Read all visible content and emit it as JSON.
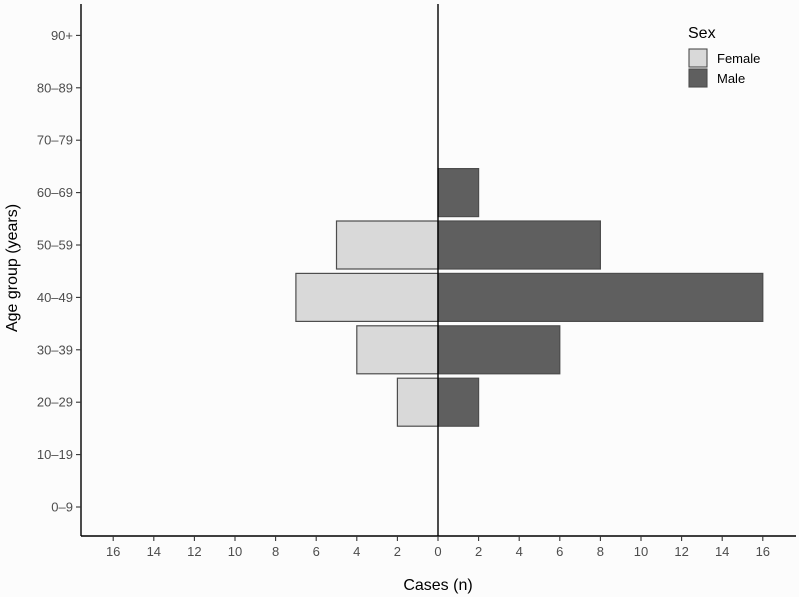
{
  "chart_data": {
    "type": "bar",
    "orientation": "horizontal",
    "categories": [
      "0–9",
      "10–19",
      "20–29",
      "30–39",
      "40–49",
      "50–59",
      "60–69",
      "70–79",
      "80–89",
      "90+"
    ],
    "series": [
      {
        "name": "Female",
        "values": [
          0,
          0,
          2,
          4,
          7,
          5,
          0,
          0,
          0,
          0
        ],
        "color": "#d9d9d9",
        "direction": "left"
      },
      {
        "name": "Male",
        "values": [
          0,
          0,
          2,
          6,
          16,
          8,
          2,
          0,
          0,
          0
        ],
        "color": "#5f5f5f",
        "direction": "right"
      }
    ],
    "xlabel": "Cases (n)",
    "ylabel": "Age group (years)",
    "xlim": [
      -17.5,
      17.5
    ],
    "xticks": [
      -16,
      -14,
      -12,
      -10,
      -8,
      -6,
      -4,
      -2,
      0,
      2,
      4,
      6,
      8,
      10,
      12,
      14,
      16
    ],
    "xtick_labels": [
      "16",
      "14",
      "12",
      "10",
      "8",
      "6",
      "4",
      "2",
      "0",
      "2",
      "4",
      "6",
      "8",
      "10",
      "12",
      "14",
      "16"
    ],
    "legend": {
      "title": "Sex",
      "position": "top-right"
    },
    "grid": false
  }
}
